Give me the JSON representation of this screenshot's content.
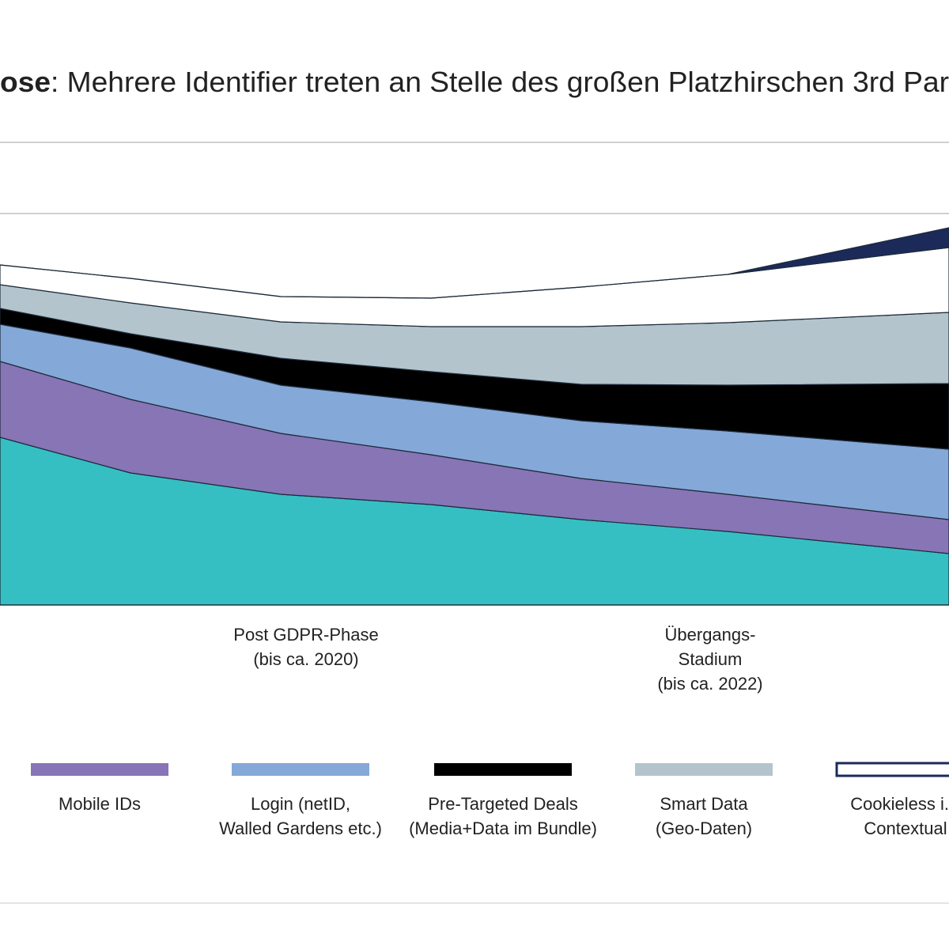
{
  "chart_data": {
    "type": "stacked_area",
    "title_bold": "ose",
    "title": ": Mehrere Identifier treten an Stelle des großen Platzhirschen 3rd Par",
    "x": [
      0,
      165,
      355,
      545,
      735,
      920,
      1200
    ],
    "xlim": [
      0,
      1200
    ],
    "ylim": [
      0,
      585
    ],
    "yticks": [
      495,
      585
    ],
    "grid": true,
    "series": [
      {
        "color": "#35bfc3",
        "values": [
          212,
          167,
          140,
          127,
          108,
          93,
          65
        ]
      },
      {
        "name": "Mobile IDs",
        "color": "#8775b6",
        "values": [
          96,
          93,
          77,
          63,
          52,
          47,
          43
        ]
      },
      {
        "name": "Login (netID,\nWalled Gardens etc.)",
        "color": "#84a8d8",
        "values": [
          47,
          65,
          61,
          67,
          73,
          80,
          89
        ]
      },
      {
        "name": "Pre-Targeted Deals\n(Media+Data im Bundle)",
        "color": "#000000",
        "values": [
          20,
          18,
          34,
          38,
          46,
          58,
          83
        ]
      },
      {
        "name": "Smart Data\n(Geo-Daten)",
        "color": "#b3c4cc",
        "values": [
          30,
          39,
          46,
          57,
          73,
          79,
          90
        ]
      },
      {
        "name": "Cookieless i.S\nContextual",
        "color": "#ffffff",
        "values": [
          25,
          31,
          32,
          36,
          50,
          61,
          82
        ]
      },
      {
        "color": "#1c2a5a",
        "values": [
          0,
          0,
          0,
          0,
          0,
          0,
          25
        ]
      }
    ],
    "annotations": [
      {
        "text": "Post GDPR-Phase\n(bis ca. 2020)",
        "x": 387
      },
      {
        "text": "Übergangs-\nStadium\n(bis ca. 2022)",
        "x": 898
      }
    ]
  }
}
